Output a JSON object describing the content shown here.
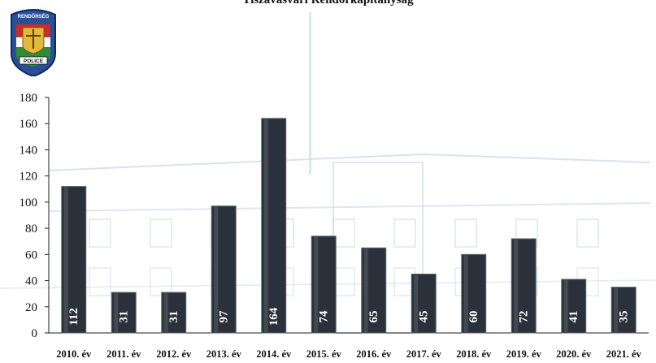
{
  "title": "Tiszavasvári Rendőrkapitányság",
  "logo": {
    "top_text": "RENDŐRSÉG",
    "bottom_text": "POLICE"
  },
  "colors": {
    "bar": "#2b313b",
    "bar_edge": "#5e6672",
    "label": "#ffffff",
    "axis": "#222222",
    "background_sketch": "#c9d6ea"
  },
  "chart_data": {
    "type": "bar",
    "categories": [
      "2010. év",
      "2011. év",
      "2012. év",
      "2013. év",
      "2014. év",
      "2015. év",
      "2016. év",
      "2017. év",
      "2018. év",
      "2019. év",
      "2020. év",
      "2021. év"
    ],
    "values": [
      112,
      31,
      31,
      97,
      164,
      74,
      65,
      45,
      60,
      72,
      41,
      35
    ],
    "data_labels": [
      "112",
      "31",
      "31",
      "97",
      "164",
      "74",
      "65",
      "45",
      "60",
      "72",
      "41",
      "35"
    ],
    "y_ticks": [
      "0",
      "20",
      "40",
      "60",
      "80",
      "100",
      "120",
      "140",
      "160",
      "180"
    ],
    "ylim": [
      0,
      180
    ],
    "xlabel": "",
    "ylabel": "",
    "grid": false,
    "legend": "none"
  }
}
